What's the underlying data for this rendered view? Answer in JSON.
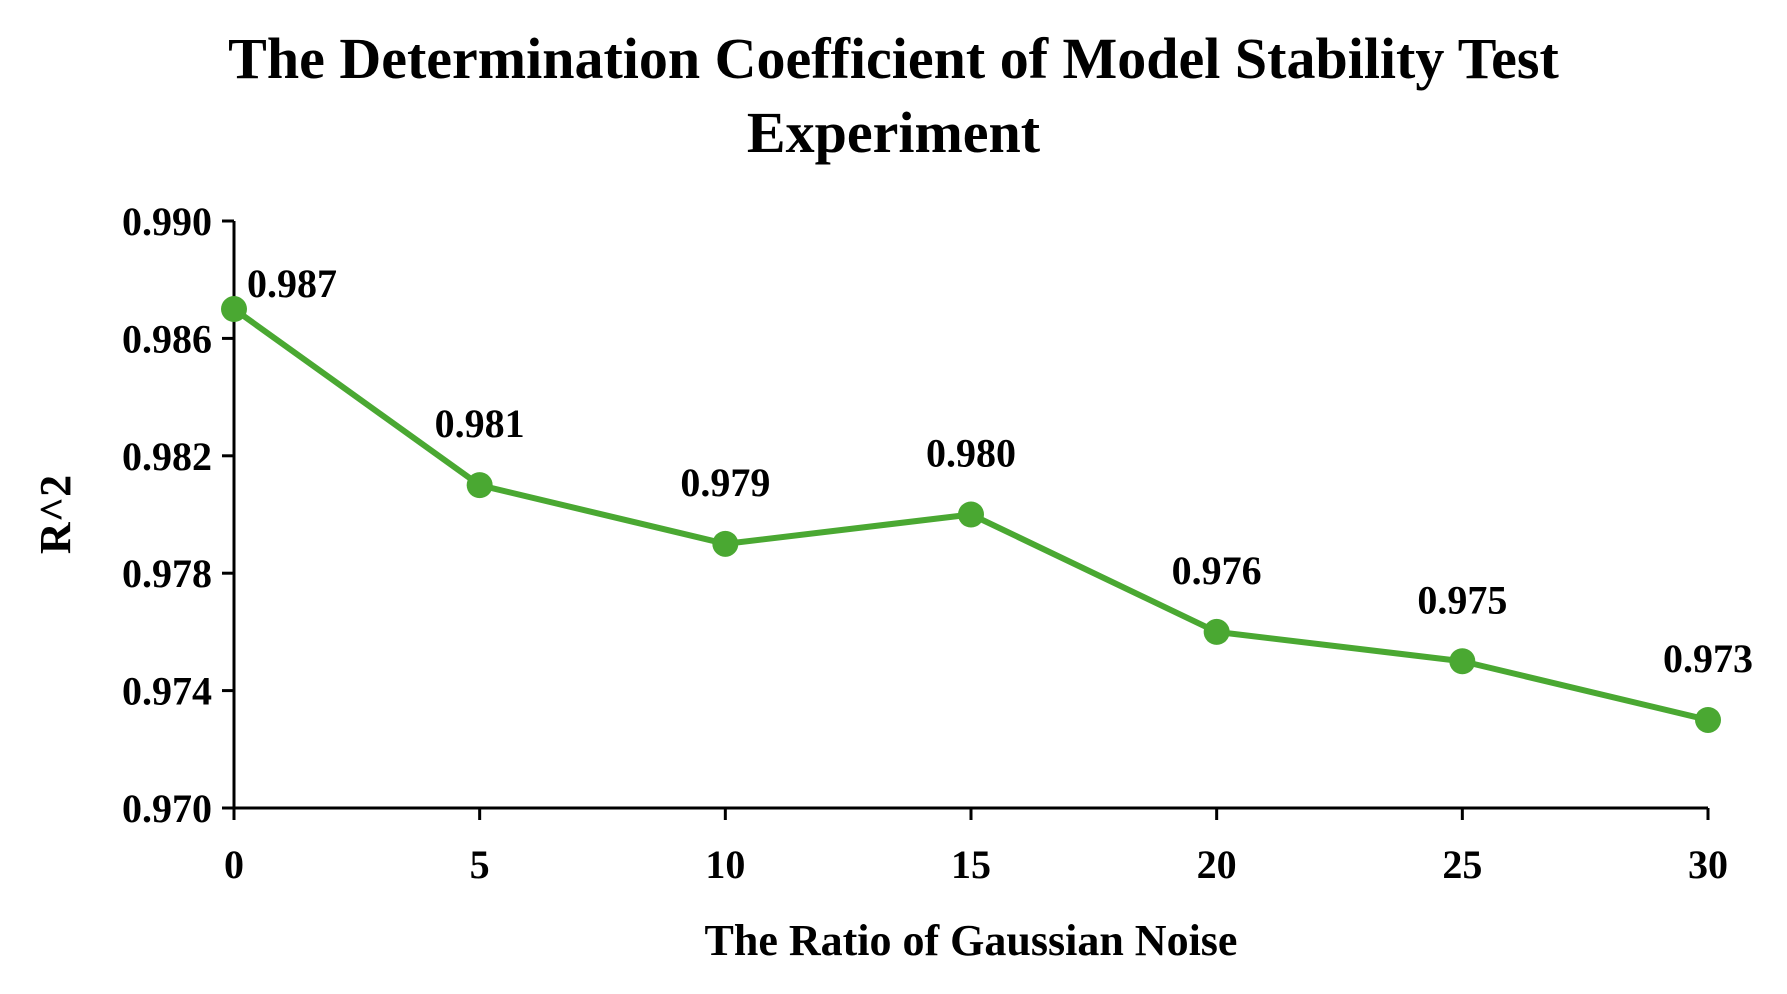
{
  "chart_data": {
    "type": "line",
    "title_line1": "The Determination Coefficient of Model Stability Test",
    "title_line2": "Experiment",
    "xlabel": "The Ratio of Gaussian Noise",
    "ylabel": "R^2",
    "x": [
      0,
      5,
      10,
      15,
      20,
      25,
      30
    ],
    "x_tick_labels": [
      "0",
      "5",
      "10",
      "15",
      "20",
      "25",
      "30"
    ],
    "y_ticks": [
      0.97,
      0.974,
      0.978,
      0.982,
      0.986,
      0.99
    ],
    "y_tick_labels": [
      "0.970",
      "0.974",
      "0.978",
      "0.982",
      "0.986",
      "0.990"
    ],
    "ylim": [
      0.97,
      0.99
    ],
    "xlim": [
      0,
      30
    ],
    "grid": false,
    "series": [
      {
        "name": "R^2",
        "color": "#4aa832",
        "values": [
          0.987,
          0.981,
          0.979,
          0.98,
          0.976,
          0.975,
          0.973
        ],
        "labels": [
          "0.987",
          "0.981",
          "0.979",
          "0.980",
          "0.976",
          "0.975",
          "0.973"
        ]
      }
    ]
  }
}
